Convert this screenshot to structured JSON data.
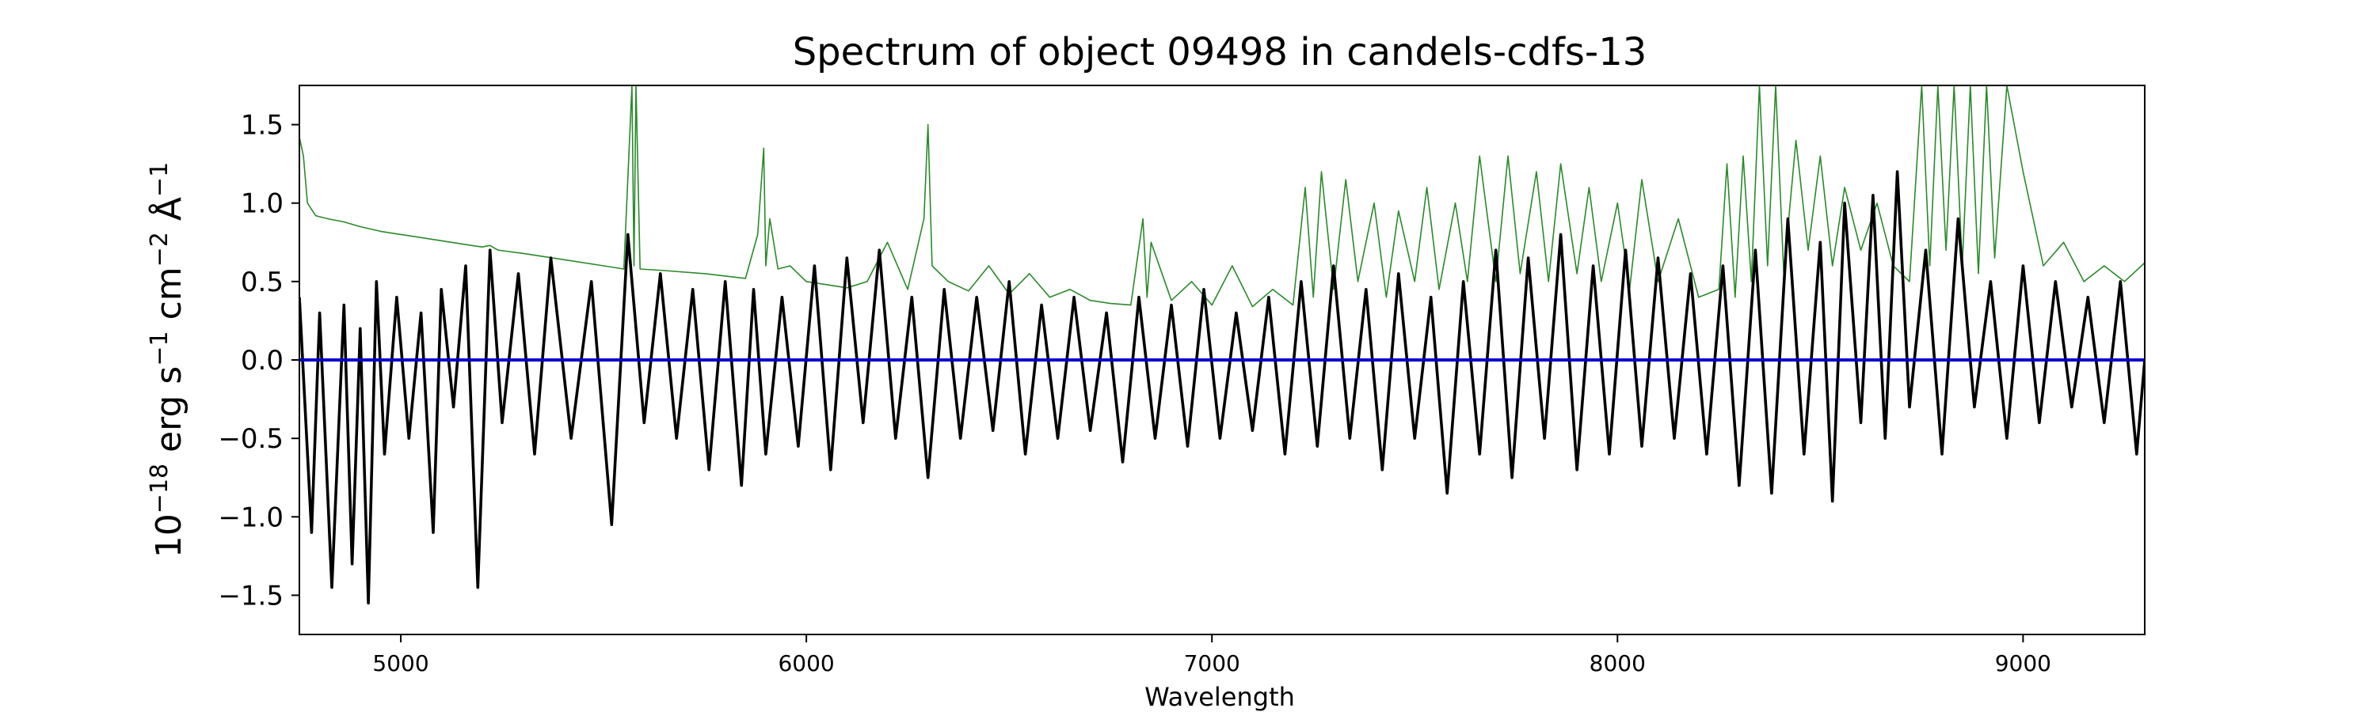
{
  "chart_data": {
    "type": "line",
    "title": "Spectrum of object 09498 in candels-cdfs-13",
    "xlabel": "Wavelength",
    "ylabel": {
      "prefix": "10",
      "exp1": "−18",
      "mid1": " erg s",
      "exp2": "−1",
      "mid2": " cm",
      "exp3": "−2",
      "mid3": " Å",
      "exp4": "−1"
    },
    "xlim": [
      4750,
      9300
    ],
    "ylim": [
      -1.75,
      1.75
    ],
    "xticks": [
      5000,
      6000,
      7000,
      8000,
      9000
    ],
    "xtick_labels": [
      "5000",
      "6000",
      "7000",
      "8000",
      "9000"
    ],
    "yticks": [
      -1.5,
      -1.0,
      -0.5,
      0.0,
      0.5,
      1.0,
      1.5
    ],
    "ytick_labels": [
      "−1.5",
      "−1.0",
      "−0.5",
      "0.0",
      "0.5",
      "1.0",
      "1.5"
    ],
    "grid": false,
    "colors": {
      "flux": "#000000",
      "error": "#2a8a2a",
      "zero": "#0000cc"
    },
    "series": [
      {
        "role": "flux",
        "x": [
          4750,
          4780,
          4800,
          4830,
          4860,
          4880,
          4900,
          4920,
          4940,
          4960,
          4990,
          5020,
          5050,
          5080,
          5100,
          5130,
          5160,
          5190,
          5220,
          5250,
          5290,
          5330,
          5370,
          5420,
          5470,
          5520,
          5560,
          5600,
          5640,
          5680,
          5720,
          5760,
          5800,
          5840,
          5870,
          5900,
          5940,
          5980,
          6020,
          6060,
          6100,
          6140,
          6180,
          6220,
          6260,
          6300,
          6340,
          6380,
          6420,
          6460,
          6500,
          6540,
          6580,
          6620,
          6660,
          6700,
          6740,
          6780,
          6820,
          6860,
          6900,
          6940,
          6980,
          7020,
          7060,
          7100,
          7140,
          7180,
          7220,
          7260,
          7300,
          7340,
          7380,
          7420,
          7460,
          7500,
          7540,
          7580,
          7620,
          7660,
          7700,
          7740,
          7780,
          7820,
          7860,
          7900,
          7940,
          7980,
          8020,
          8060,
          8100,
          8140,
          8180,
          8220,
          8260,
          8300,
          8340,
          8380,
          8420,
          8460,
          8500,
          8530,
          8560,
          8600,
          8630,
          8660,
          8690,
          8720,
          8760,
          8800,
          8840,
          8880,
          8920,
          8960,
          9000,
          9040,
          9080,
          9120,
          9160,
          9200,
          9240,
          9280,
          9300
        ],
        "y": [
          0.4,
          -1.1,
          0.3,
          -1.45,
          0.35,
          -1.3,
          0.2,
          -1.55,
          0.5,
          -0.6,
          0.4,
          -0.5,
          0.3,
          -1.1,
          0.45,
          -0.3,
          0.6,
          -1.45,
          0.7,
          -0.4,
          0.55,
          -0.6,
          0.65,
          -0.5,
          0.5,
          -1.05,
          0.8,
          -0.4,
          0.55,
          -0.5,
          0.45,
          -0.7,
          0.5,
          -0.8,
          0.45,
          -0.6,
          0.4,
          -0.55,
          0.6,
          -0.7,
          0.65,
          -0.4,
          0.7,
          -0.5,
          0.4,
          -0.75,
          0.45,
          -0.5,
          0.4,
          -0.45,
          0.5,
          -0.6,
          0.35,
          -0.5,
          0.4,
          -0.45,
          0.3,
          -0.65,
          0.4,
          -0.5,
          0.35,
          -0.55,
          0.45,
          -0.5,
          0.3,
          -0.45,
          0.4,
          -0.6,
          0.5,
          -0.55,
          0.6,
          -0.5,
          0.45,
          -0.7,
          0.55,
          -0.5,
          0.4,
          -0.85,
          0.5,
          -0.6,
          0.7,
          -0.75,
          0.65,
          -0.5,
          0.8,
          -0.7,
          0.6,
          -0.6,
          0.7,
          -0.55,
          0.65,
          -0.5,
          0.55,
          -0.6,
          0.6,
          -0.8,
          0.7,
          -0.85,
          0.9,
          -0.6,
          0.75,
          -0.9,
          1.0,
          -0.4,
          1.05,
          -0.5,
          1.2,
          -0.3,
          0.7,
          -0.6,
          0.9,
          -0.3,
          0.5,
          -0.5,
          0.6,
          -0.4,
          0.5,
          -0.3,
          0.4,
          -0.4,
          0.5,
          -0.6,
          0.0
        ]
      },
      {
        "role": "error",
        "x": [
          4750,
          4760,
          4770,
          4790,
          4820,
          4860,
          4900,
          4950,
          5000,
          5050,
          5100,
          5150,
          5200,
          5220,
          5240,
          5300,
          5400,
          5500,
          5550,
          5570,
          5575,
          5580,
          5590,
          5650,
          5750,
          5850,
          5880,
          5895,
          5900,
          5910,
          5930,
          5960,
          6000,
          6050,
          6100,
          6150,
          6200,
          6250,
          6290,
          6300,
          6310,
          6350,
          6400,
          6450,
          6500,
          6550,
          6600,
          6650,
          6700,
          6750,
          6800,
          6830,
          6840,
          6850,
          6900,
          6950,
          7000,
          7050,
          7100,
          7150,
          7200,
          7230,
          7250,
          7270,
          7300,
          7330,
          7360,
          7400,
          7430,
          7460,
          7500,
          7530,
          7560,
          7600,
          7630,
          7660,
          7700,
          7730,
          7760,
          7800,
          7830,
          7860,
          7900,
          7930,
          7960,
          8000,
          8030,
          8060,
          8100,
          8150,
          8200,
          8250,
          8270,
          8290,
          8310,
          8330,
          8350,
          8370,
          8390,
          8410,
          8440,
          8470,
          8500,
          8530,
          8560,
          8600,
          8640,
          8680,
          8720,
          8750,
          8770,
          8790,
          8810,
          8830,
          8850,
          8870,
          8890,
          8910,
          8930,
          8960,
          9000,
          9050,
          9100,
          9150,
          9200,
          9250,
          9300
        ],
        "y": [
          1.42,
          1.3,
          1.0,
          0.92,
          0.9,
          0.88,
          0.85,
          0.82,
          0.8,
          0.78,
          0.76,
          0.74,
          0.72,
          0.73,
          0.7,
          0.68,
          0.64,
          0.6,
          0.58,
          1.75,
          0.6,
          1.75,
          0.58,
          0.57,
          0.55,
          0.52,
          0.8,
          1.35,
          0.6,
          0.9,
          0.58,
          0.6,
          0.5,
          0.48,
          0.46,
          0.5,
          0.75,
          0.45,
          0.9,
          1.5,
          0.6,
          0.5,
          0.44,
          0.6,
          0.42,
          0.55,
          0.4,
          0.45,
          0.38,
          0.36,
          0.35,
          0.9,
          0.4,
          0.75,
          0.38,
          0.5,
          0.35,
          0.6,
          0.34,
          0.45,
          0.35,
          1.1,
          0.4,
          1.2,
          0.45,
          1.15,
          0.5,
          1.0,
          0.4,
          0.95,
          0.5,
          1.1,
          0.45,
          1.0,
          0.5,
          1.3,
          0.5,
          1.3,
          0.55,
          1.2,
          0.5,
          1.25,
          0.55,
          1.1,
          0.5,
          1.0,
          0.45,
          1.15,
          0.5,
          0.9,
          0.4,
          0.45,
          1.25,
          0.4,
          1.3,
          0.5,
          1.75,
          0.6,
          1.75,
          0.55,
          1.4,
          0.7,
          1.3,
          0.6,
          1.1,
          0.7,
          1.0,
          0.6,
          0.5,
          1.75,
          0.6,
          1.75,
          0.7,
          1.75,
          0.6,
          1.75,
          0.55,
          1.75,
          0.65,
          1.75,
          1.2,
          0.6,
          0.75,
          0.5,
          0.6,
          0.5,
          0.62
        ]
      }
    ]
  }
}
